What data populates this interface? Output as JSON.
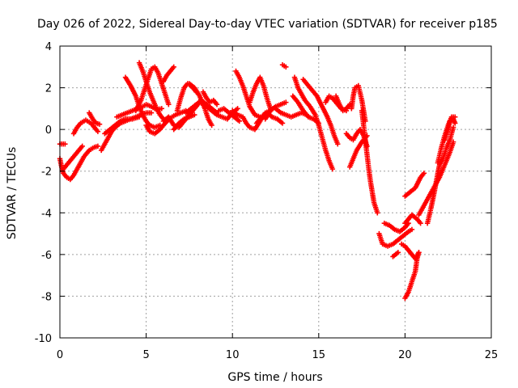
{
  "chart_data": {
    "type": "scatter",
    "title": "Day 026 of 2022, Sidereal Day-to-day VTEC variation (SDTVAR) for receiver p185",
    "xlabel": "GPS time / hours",
    "ylabel": "SDTVAR / TECUs",
    "xlim": [
      0,
      25
    ],
    "ylim": [
      -10,
      4
    ],
    "xticks": [
      0,
      5,
      10,
      15,
      20,
      25
    ],
    "yticks": [
      -10,
      -8,
      -6,
      -4,
      -2,
      0,
      2,
      4
    ],
    "grid": true,
    "marker": "+",
    "color": "#ff0000",
    "tracks": [
      [
        [
          0.0,
          -0.7
        ],
        [
          0.3,
          -0.7
        ]
      ],
      [
        [
          0.0,
          -1.4
        ],
        [
          0.1,
          -1.8
        ],
        [
          0.2,
          -2.1
        ],
        [
          0.4,
          -2.3
        ],
        [
          0.6,
          -2.4
        ],
        [
          0.8,
          -2.2
        ],
        [
          1.0,
          -1.9
        ],
        [
          1.2,
          -1.6
        ],
        [
          1.4,
          -1.3
        ],
        [
          1.7,
          -1.0
        ],
        [
          2.0,
          -0.85
        ],
        [
          2.2,
          -0.8
        ]
      ],
      [
        [
          0.2,
          -1.9
        ],
        [
          0.5,
          -1.6
        ],
        [
          0.8,
          -1.3
        ],
        [
          1.1,
          -1.0
        ],
        [
          1.3,
          -0.8
        ]
      ],
      [
        [
          0.8,
          -0.2
        ],
        [
          1.0,
          0.1
        ],
        [
          1.2,
          0.3
        ],
        [
          1.5,
          0.45
        ],
        [
          1.8,
          0.3
        ],
        [
          2.0,
          0.1
        ],
        [
          2.2,
          -0.1
        ]
      ],
      [
        [
          1.7,
          0.8
        ],
        [
          1.9,
          0.5
        ],
        [
          2.1,
          0.3
        ],
        [
          2.3,
          0.25
        ]
      ],
      [
        [
          2.4,
          -1.0
        ],
        [
          2.6,
          -0.7
        ],
        [
          2.8,
          -0.4
        ],
        [
          3.0,
          -0.1
        ],
        [
          3.2,
          0.1
        ],
        [
          3.5,
          0.3
        ],
        [
          3.8,
          0.4
        ],
        [
          4.1,
          0.5
        ],
        [
          4.4,
          0.6
        ],
        [
          4.7,
          0.7
        ],
        [
          5.0,
          0.8
        ],
        [
          5.3,
          0.8
        ]
      ],
      [
        [
          2.6,
          -0.2
        ],
        [
          2.9,
          0.0
        ],
        [
          3.2,
          0.2
        ],
        [
          3.5,
          0.4
        ],
        [
          3.8,
          0.5
        ],
        [
          4.2,
          0.5
        ],
        [
          4.6,
          0.6
        ]
      ],
      [
        [
          3.3,
          0.6
        ],
        [
          3.6,
          0.7
        ],
        [
          3.9,
          0.8
        ],
        [
          4.2,
          0.9
        ],
        [
          4.5,
          1.0
        ],
        [
          4.8,
          1.1
        ],
        [
          5.0,
          1.2
        ],
        [
          5.3,
          1.1
        ],
        [
          5.6,
          0.95
        ],
        [
          5.9,
          1.0
        ]
      ],
      [
        [
          3.8,
          2.5
        ],
        [
          4.1,
          2.1
        ],
        [
          4.4,
          1.6
        ],
        [
          4.6,
          1.1
        ],
        [
          4.8,
          0.7
        ],
        [
          5.0,
          0.4
        ],
        [
          5.2,
          0.2
        ],
        [
          5.5,
          0.1
        ],
        [
          5.8,
          0.2
        ]
      ],
      [
        [
          4.6,
          3.2
        ],
        [
          4.8,
          2.8
        ],
        [
          5.0,
          2.3
        ],
        [
          5.2,
          1.8
        ],
        [
          5.4,
          1.4
        ],
        [
          5.6,
          1.0
        ],
        [
          5.8,
          0.7
        ],
        [
          6.0,
          0.5
        ]
      ],
      [
        [
          4.4,
          0.9
        ],
        [
          4.7,
          1.4
        ],
        [
          4.9,
          1.9
        ],
        [
          5.1,
          2.4
        ],
        [
          5.3,
          2.9
        ],
        [
          5.5,
          3.0
        ],
        [
          5.7,
          2.7
        ],
        [
          5.9,
          2.2
        ],
        [
          6.1,
          1.7
        ],
        [
          6.3,
          1.2
        ]
      ],
      [
        [
          5.0,
          0.2
        ],
        [
          5.2,
          -0.1
        ],
        [
          5.5,
          -0.2
        ],
        [
          5.8,
          0.0
        ],
        [
          6.1,
          0.3
        ],
        [
          6.4,
          0.55
        ],
        [
          6.7,
          0.7
        ],
        [
          7.0,
          0.8
        ],
        [
          7.3,
          0.9
        ]
      ],
      [
        [
          6.0,
          0.4
        ],
        [
          6.3,
          0.6
        ],
        [
          6.6,
          0.2
        ],
        [
          6.9,
          0.1
        ],
        [
          7.2,
          0.4
        ],
        [
          7.5,
          0.7
        ],
        [
          7.8,
          1.0
        ],
        [
          8.1,
          1.3
        ],
        [
          8.4,
          1.2
        ]
      ],
      [
        [
          6.0,
          2.3
        ],
        [
          6.2,
          2.6
        ],
        [
          6.4,
          2.8
        ],
        [
          6.6,
          3.0
        ]
      ],
      [
        [
          6.8,
          0.9
        ],
        [
          7.0,
          1.5
        ],
        [
          7.2,
          2.0
        ],
        [
          7.4,
          2.2
        ],
        [
          7.6,
          2.1
        ],
        [
          7.9,
          1.8
        ]
      ],
      [
        [
          6.6,
          0.0
        ],
        [
          6.9,
          0.3
        ],
        [
          7.2,
          0.5
        ],
        [
          7.5,
          0.6
        ],
        [
          7.8,
          0.7
        ]
      ],
      [
        [
          7.3,
          0.8
        ],
        [
          7.6,
          1.0
        ],
        [
          7.9,
          1.2
        ],
        [
          8.2,
          1.4
        ],
        [
          8.5,
          1.2
        ],
        [
          8.8,
          1.0
        ],
        [
          9.1,
          0.8
        ]
      ],
      [
        [
          7.5,
          2.2
        ],
        [
          7.8,
          2.0
        ],
        [
          8.1,
          1.6
        ],
        [
          8.4,
          1.0
        ],
        [
          8.6,
          0.5
        ],
        [
          8.8,
          0.2
        ]
      ],
      [
        [
          8.3,
          1.8
        ],
        [
          8.5,
          1.5
        ],
        [
          8.7,
          1.3
        ],
        [
          8.9,
          1.4
        ],
        [
          9.1,
          1.2
        ]
      ],
      [
        [
          8.2,
          1.3
        ],
        [
          8.5,
          1.1
        ],
        [
          8.8,
          0.9
        ],
        [
          9.1,
          0.7
        ],
        [
          9.4,
          0.6
        ],
        [
          9.7,
          0.5
        ],
        [
          10.0,
          0.8
        ],
        [
          10.3,
          1.0
        ]
      ],
      [
        [
          9.2,
          0.9
        ],
        [
          9.5,
          1.0
        ],
        [
          9.8,
          0.8
        ],
        [
          10.1,
          0.6
        ],
        [
          10.4,
          0.4
        ]
      ],
      [
        [
          10.2,
          2.8
        ],
        [
          10.4,
          2.5
        ],
        [
          10.6,
          2.1
        ],
        [
          10.8,
          1.6
        ],
        [
          11.0,
          1.1
        ],
        [
          11.3,
          0.7
        ],
        [
          11.6,
          0.6
        ]
      ],
      [
        [
          10.0,
          0.9
        ],
        [
          10.3,
          0.7
        ],
        [
          10.6,
          0.6
        ],
        [
          10.8,
          0.3
        ],
        [
          11.0,
          0.1
        ],
        [
          11.3,
          0.0
        ],
        [
          11.6,
          0.4
        ],
        [
          11.9,
          0.8
        ],
        [
          12.2,
          0.9
        ]
      ],
      [
        [
          11.0,
          1.3
        ],
        [
          11.2,
          1.8
        ],
        [
          11.4,
          2.2
        ],
        [
          11.6,
          2.5
        ],
        [
          11.8,
          2.1
        ],
        [
          12.0,
          1.5
        ],
        [
          12.2,
          1.0
        ]
      ],
      [
        [
          11.4,
          0.3
        ],
        [
          11.7,
          0.6
        ],
        [
          12.0,
          0.8
        ],
        [
          12.3,
          0.6
        ],
        [
          12.6,
          0.5
        ],
        [
          12.9,
          0.3
        ]
      ],
      [
        [
          11.9,
          0.5
        ],
        [
          12.2,
          0.9
        ],
        [
          12.5,
          1.1
        ],
        [
          12.8,
          1.2
        ],
        [
          13.1,
          1.3
        ]
      ],
      [
        [
          12.5,
          1.0
        ],
        [
          12.8,
          0.8
        ],
        [
          13.1,
          0.7
        ],
        [
          13.4,
          0.6
        ],
        [
          13.7,
          0.7
        ],
        [
          14.0,
          0.8
        ],
        [
          14.3,
          0.7
        ]
      ],
      [
        [
          12.9,
          3.1
        ],
        [
          13.1,
          3.0
        ]
      ],
      [
        [
          13.6,
          2.5
        ],
        [
          13.8,
          2.0
        ],
        [
          14.0,
          1.7
        ],
        [
          14.2,
          1.4
        ],
        [
          14.5,
          1.1
        ],
        [
          14.8,
          0.7
        ],
        [
          15.0,
          0.2
        ],
        [
          15.2,
          -0.4
        ],
        [
          15.4,
          -1.0
        ],
        [
          15.6,
          -1.5
        ],
        [
          15.8,
          -1.9
        ]
      ],
      [
        [
          13.5,
          1.6
        ],
        [
          13.8,
          1.3
        ],
        [
          14.1,
          0.9
        ],
        [
          14.4,
          0.6
        ],
        [
          14.7,
          0.5
        ],
        [
          15.0,
          0.3
        ]
      ],
      [
        [
          14.1,
          2.4
        ],
        [
          14.3,
          2.2
        ],
        [
          14.6,
          1.9
        ],
        [
          14.9,
          1.6
        ],
        [
          15.2,
          1.1
        ],
        [
          15.5,
          0.6
        ],
        [
          15.7,
          0.2
        ],
        [
          15.9,
          -0.3
        ],
        [
          16.1,
          -0.7
        ]
      ],
      [
        [
          15.4,
          1.3
        ],
        [
          15.6,
          1.6
        ],
        [
          15.8,
          1.5
        ],
        [
          16.0,
          1.3
        ],
        [
          16.3,
          1.0
        ],
        [
          16.6,
          0.9
        ]
      ],
      [
        [
          16.0,
          1.6
        ],
        [
          16.2,
          1.2
        ],
        [
          16.4,
          0.9
        ],
        [
          16.6,
          1.0
        ],
        [
          16.8,
          1.2
        ]
      ],
      [
        [
          16.9,
          1.0
        ],
        [
          17.0,
          1.6
        ],
        [
          17.1,
          2.0
        ],
        [
          17.3,
          2.1
        ],
        [
          17.5,
          1.4
        ],
        [
          17.7,
          0.4
        ]
      ],
      [
        [
          16.6,
          -0.2
        ],
        [
          16.8,
          -0.4
        ],
        [
          17.0,
          -0.5
        ],
        [
          17.2,
          -0.2
        ],
        [
          17.4,
          0.0
        ],
        [
          17.6,
          -0.3
        ],
        [
          17.8,
          -0.8
        ]
      ],
      [
        [
          16.8,
          -1.8
        ],
        [
          17.0,
          -1.4
        ],
        [
          17.2,
          -1.0
        ],
        [
          17.5,
          -0.6
        ],
        [
          17.8,
          -0.3
        ]
      ],
      [
        [
          17.5,
          0.9
        ],
        [
          17.6,
          0.2
        ],
        [
          17.7,
          -0.5
        ],
        [
          17.8,
          -1.2
        ],
        [
          17.9,
          -1.9
        ],
        [
          18.0,
          -2.5
        ],
        [
          18.1,
          -3.0
        ],
        [
          18.2,
          -3.5
        ],
        [
          18.4,
          -4.0
        ]
      ],
      [
        [
          18.5,
          -5.0
        ],
        [
          18.7,
          -5.5
        ],
        [
          19.0,
          -5.6
        ],
        [
          19.3,
          -5.5
        ],
        [
          19.6,
          -5.3
        ],
        [
          19.9,
          -5.1
        ],
        [
          20.2,
          -4.9
        ],
        [
          20.4,
          -4.8
        ]
      ],
      [
        [
          18.8,
          -4.5
        ],
        [
          19.1,
          -4.6
        ],
        [
          19.4,
          -4.8
        ],
        [
          19.7,
          -4.9
        ],
        [
          20.0,
          -4.7
        ],
        [
          20.2,
          -4.5
        ]
      ],
      [
        [
          19.8,
          -5.5
        ],
        [
          20.0,
          -5.6
        ],
        [
          20.2,
          -5.8
        ],
        [
          20.4,
          -6.0
        ],
        [
          20.6,
          -6.2
        ],
        [
          20.8,
          -5.9
        ]
      ],
      [
        [
          19.3,
          -6.1
        ],
        [
          19.6,
          -5.9
        ]
      ],
      [
        [
          20.0,
          -8.1
        ],
        [
          20.2,
          -7.8
        ],
        [
          20.4,
          -7.3
        ],
        [
          20.6,
          -6.8
        ],
        [
          20.7,
          -6.2
        ],
        [
          20.8,
          -5.9
        ]
      ],
      [
        [
          20.0,
          -4.5
        ],
        [
          20.2,
          -4.3
        ],
        [
          20.4,
          -4.1
        ],
        [
          20.7,
          -4.3
        ],
        [
          20.9,
          -4.5
        ]
      ],
      [
        [
          20.0,
          -3.2
        ],
        [
          20.3,
          -3.0
        ],
        [
          20.6,
          -2.8
        ],
        [
          20.9,
          -2.3
        ],
        [
          21.1,
          -2.1
        ]
      ],
      [
        [
          20.8,
          -4.1
        ],
        [
          21.0,
          -3.8
        ],
        [
          21.2,
          -3.5
        ],
        [
          21.4,
          -3.2
        ],
        [
          21.6,
          -2.9
        ],
        [
          21.8,
          -2.6
        ],
        [
          22.0,
          -2.3
        ],
        [
          22.2,
          -1.9
        ],
        [
          22.4,
          -1.5
        ],
        [
          22.6,
          -1.1
        ],
        [
          22.8,
          -0.6
        ]
      ],
      [
        [
          21.3,
          -4.5
        ],
        [
          21.5,
          -3.8
        ],
        [
          21.7,
          -3.0
        ],
        [
          21.9,
          -2.1
        ],
        [
          22.0,
          -1.7
        ],
        [
          22.2,
          -1.4
        ],
        [
          22.4,
          -0.9
        ],
        [
          22.6,
          -0.5
        ],
        [
          22.8,
          0.1
        ]
      ],
      [
        [
          21.9,
          -1.6
        ],
        [
          22.1,
          -0.9
        ],
        [
          22.3,
          -0.3
        ],
        [
          22.5,
          0.2
        ],
        [
          22.7,
          0.6
        ],
        [
          22.9,
          0.6
        ]
      ],
      [
        [
          22.3,
          -0.5
        ],
        [
          22.5,
          0.0
        ],
        [
          22.6,
          0.4
        ],
        [
          22.8,
          0.5
        ],
        [
          22.9,
          0.3
        ]
      ]
    ]
  }
}
